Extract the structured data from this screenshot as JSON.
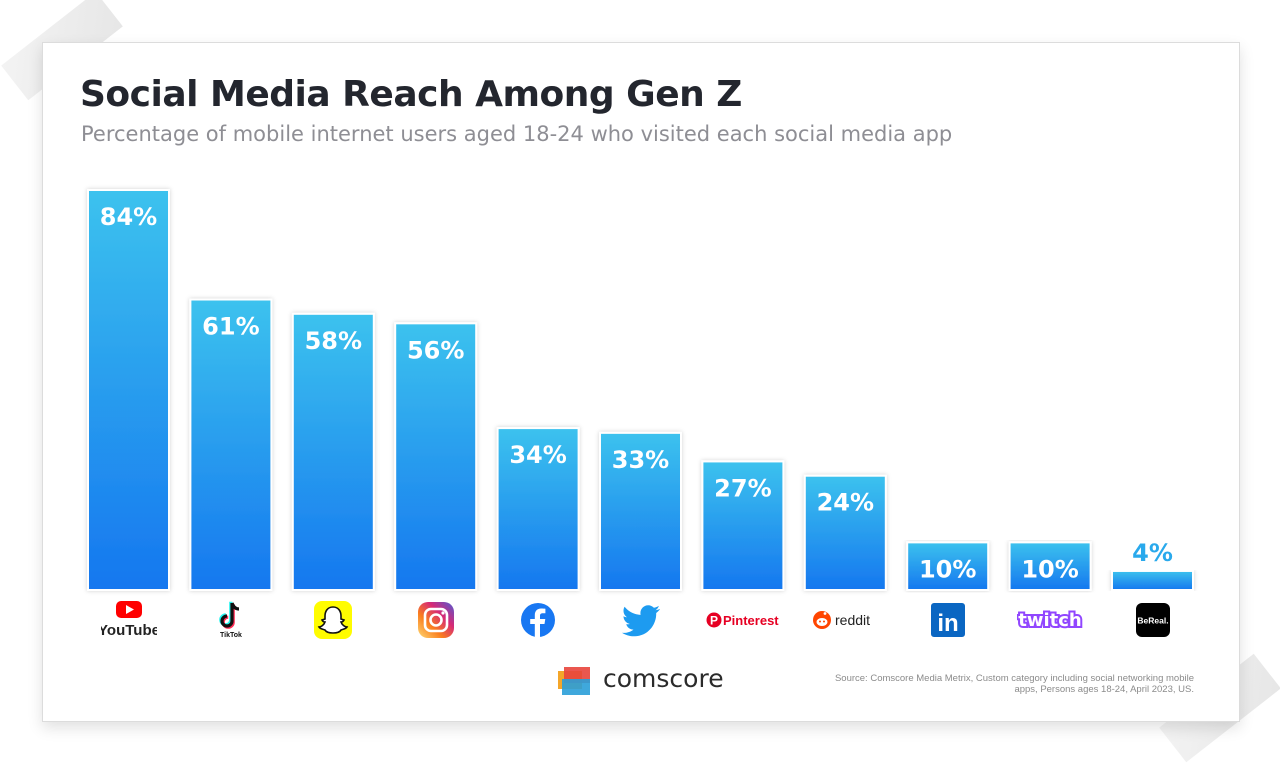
{
  "title": "Social Media Reach Among Gen Z",
  "subtitle": "Percentage of mobile internet users aged 18-24 who visited each social media app",
  "source": "Source: Comscore Media Metrix, Custom category including social networking mobile apps, Persons ages 18-24, April 2023, US.",
  "brand": "comscore",
  "colors": {
    "bar_top": "#3cc2ee",
    "bar_bottom": "#1577ef",
    "label_inside": "#ffffff",
    "label_outside": "#29a9ec",
    "title": "#23262e",
    "subtitle": "#8e8e94"
  },
  "chart_data": {
    "type": "bar",
    "title": "Social Media Reach Among Gen Z",
    "subtitle": "Percentage of mobile internet users aged 18-24 who visited each social media app",
    "categories": [
      "YouTube",
      "TikTok",
      "Snapchat",
      "Instagram",
      "Facebook",
      "Twitter",
      "Pinterest",
      "reddit",
      "LinkedIn",
      "Twitch",
      "BeReal"
    ],
    "values": [
      84,
      61,
      58,
      56,
      34,
      33,
      27,
      24,
      10,
      10,
      4
    ],
    "value_labels": [
      "84%",
      "61%",
      "58%",
      "56%",
      "34%",
      "33%",
      "27%",
      "24%",
      "10%",
      "10%",
      "4%"
    ],
    "xlabel": "",
    "ylabel": "",
    "ylim": [
      0,
      84
    ],
    "grid": false,
    "legend": "none"
  },
  "logos": [
    {
      "name": "youtube-icon",
      "text": "YouTube"
    },
    {
      "name": "tiktok-icon",
      "text": "TikTok"
    },
    {
      "name": "snapchat-icon",
      "text": ""
    },
    {
      "name": "instagram-icon",
      "text": ""
    },
    {
      "name": "facebook-icon",
      "text": ""
    },
    {
      "name": "twitter-icon",
      "text": ""
    },
    {
      "name": "pinterest-icon",
      "text": "Pinterest"
    },
    {
      "name": "reddit-icon",
      "text": "reddit"
    },
    {
      "name": "linkedin-icon",
      "text": "in"
    },
    {
      "name": "twitch-icon",
      "text": "twitch"
    },
    {
      "name": "bereal-icon",
      "text": "BeReal."
    }
  ]
}
